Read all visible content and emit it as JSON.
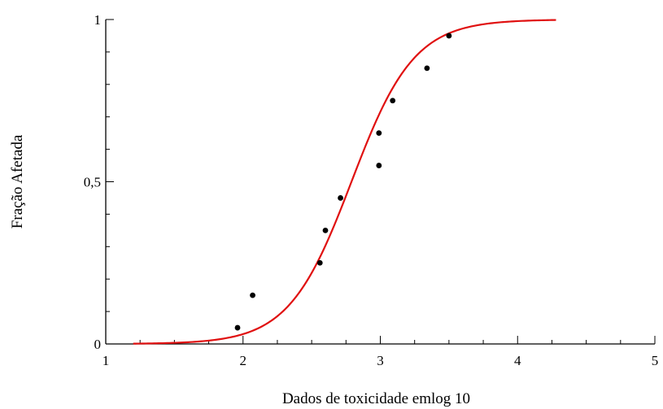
{
  "chart_data": {
    "type": "scatter",
    "xlabel": "Dados de toxicidade emlog 10",
    "ylabel": "Fração Afetada",
    "xlim": [
      1,
      5
    ],
    "ylim": [
      0,
      1
    ],
    "x_ticks": [
      "1",
      "2",
      "3",
      "4",
      "5"
    ],
    "y_ticks": [
      "0",
      "0,5",
      "1"
    ],
    "grid": false,
    "series": [
      {
        "x": [
          1.96,
          2.07,
          2.56,
          2.6,
          2.71,
          2.99,
          2.99,
          3.09,
          3.34,
          3.5
        ],
        "y": [
          0.05,
          0.15,
          0.25,
          0.35,
          0.45,
          0.55,
          0.65,
          0.75,
          0.85,
          0.95
        ]
      }
    ],
    "fit_curve": {
      "type": "logistic-cdf",
      "location": 2.79,
      "scale": 0.228,
      "x_range": [
        1.2,
        4.28
      ]
    },
    "colors": {
      "curve": "#e01010",
      "points": "#000000"
    }
  }
}
